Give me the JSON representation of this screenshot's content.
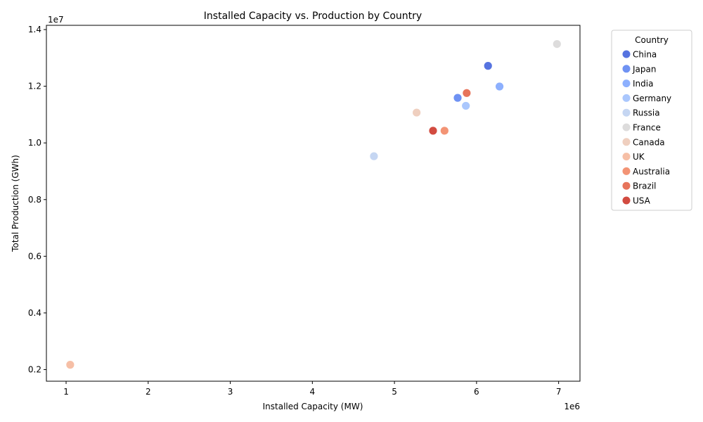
{
  "chart_data": {
    "type": "scatter",
    "title": "Installed Capacity vs. Production by Country",
    "xlabel": "Installed Capacity (MW)",
    "ylabel": "Total Production (GWh)",
    "x_offset_label": "1e6",
    "y_offset_label": "1e7",
    "xlim": [
      0.76,
      7.26
    ],
    "ylim": [
      1.59,
      14.15
    ],
    "x_ticks": [
      1,
      2,
      3,
      4,
      5,
      6,
      7
    ],
    "y_ticks": [
      0.2,
      0.4,
      0.6,
      0.8,
      1.0,
      1.2,
      1.4
    ],
    "x_tick_labels": [
      "1",
      "2",
      "3",
      "4",
      "5",
      "6",
      "7"
    ],
    "y_tick_labels": [
      "0.2",
      "0.4",
      "0.6",
      "0.8",
      "1.0",
      "1.2",
      "1.4"
    ],
    "legend_title": "Country",
    "legend_position": "outside-right-top",
    "series": [
      {
        "name": "China",
        "color": "#5673e0",
        "points": [
          [
            6.14,
            12.72
          ]
        ]
      },
      {
        "name": "Japan",
        "color": "#6f92f3",
        "points": [
          [
            5.77,
            11.59
          ]
        ]
      },
      {
        "name": "India",
        "color": "#8db0fe",
        "points": [
          [
            6.28,
            11.99
          ]
        ]
      },
      {
        "name": "Germany",
        "color": "#aac7fd",
        "points": [
          [
            5.87,
            11.31
          ]
        ]
      },
      {
        "name": "Russia",
        "color": "#c5d6f2",
        "points": [
          [
            4.75,
            9.53
          ]
        ]
      },
      {
        "name": "France",
        "color": "#dddcdc",
        "points": [
          [
            6.98,
            13.49
          ]
        ]
      },
      {
        "name": "Canada",
        "color": "#efcfbf",
        "points": [
          [
            5.27,
            11.07
          ]
        ]
      },
      {
        "name": "UK",
        "color": "#f6bfa6",
        "points": [
          [
            1.05,
            2.17
          ]
        ]
      },
      {
        "name": "Australia",
        "color": "#f39475",
        "points": [
          [
            5.61,
            10.43
          ]
        ]
      },
      {
        "name": "Brazil",
        "color": "#e7745b",
        "points": [
          [
            5.88,
            11.76
          ]
        ]
      },
      {
        "name": "USA",
        "color": "#d24b40",
        "points": [
          [
            5.47,
            10.43
          ]
        ]
      }
    ]
  }
}
